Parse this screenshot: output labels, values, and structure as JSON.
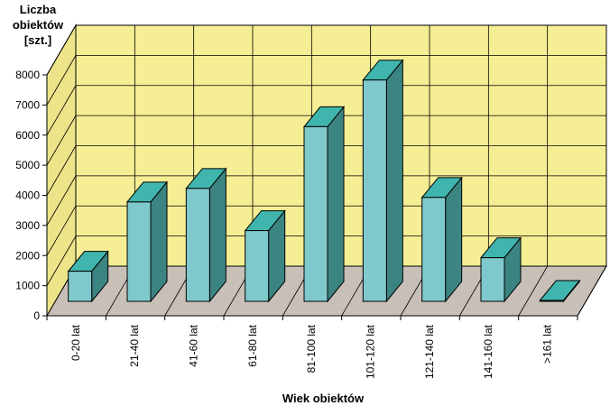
{
  "chart_data": {
    "type": "bar",
    "title": "",
    "ylabel_lines": [
      "Liczba",
      "obiektów",
      "[szt.]"
    ],
    "xlabel": "Wiek obiektów",
    "categories": [
      "0-20 lat",
      "21-40 lat",
      "41-60 lat",
      "61-80 lat",
      "81-100 lat",
      "101-120 lat",
      "121-140 lat",
      "141-160 lat",
      ">161 lat"
    ],
    "values": [
      1000,
      3300,
      3750,
      2350,
      5800,
      7350,
      3450,
      1450,
      30
    ],
    "ylim": [
      0,
      8000
    ],
    "yticks": [
      0,
      1000,
      2000,
      3000,
      4000,
      5000,
      6000,
      7000,
      8000
    ],
    "grid": true,
    "legend": "none",
    "colors": {
      "wall": "#f5ee94",
      "floor": "#c8c0b8",
      "side_wall": "#ede48a",
      "grid": "#000000",
      "bar_front": "#7fc9cc",
      "bar_top": "#3fb5ad",
      "bar_side": "#3c8482"
    }
  }
}
